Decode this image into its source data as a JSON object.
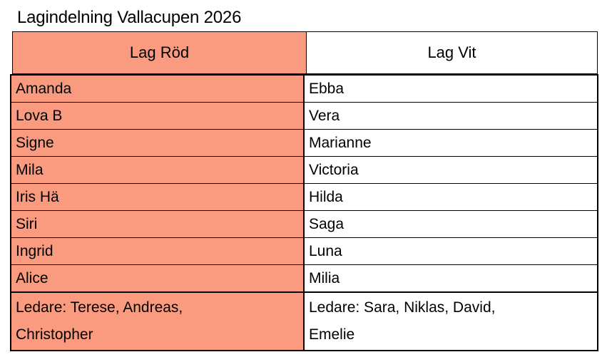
{
  "title": "Lagindelning Vallacupen 2026",
  "table": {
    "headers": [
      {
        "label": "Lag Röd"
      },
      {
        "label": "Lag Vit"
      }
    ],
    "rows": [
      {
        "red": "Amanda",
        "vit": "Ebba"
      },
      {
        "red": "Lova B",
        "vit": "Vera"
      },
      {
        "red": "Signe",
        "vit": "Marianne"
      },
      {
        "red": "Mila",
        "vit": "Victoria"
      },
      {
        "red": "Iris Hä",
        "vit": "Hilda"
      },
      {
        "red": "Siri",
        "vit": "Saga"
      },
      {
        "red": "Ingrid",
        "vit": "Luna"
      },
      {
        "red": "Alice",
        "vit": "Milia"
      }
    ],
    "leaders": {
      "red": "Ledare: Terese, Andreas,\nChristopher",
      "vit": "Ledare: Sara, Niklas, David,\nEmelie"
    }
  },
  "colors": {
    "team_red_fill": "#FA9B80",
    "team_white_fill": "#FFFFFF",
    "border": "#000000",
    "text": "#000000"
  }
}
